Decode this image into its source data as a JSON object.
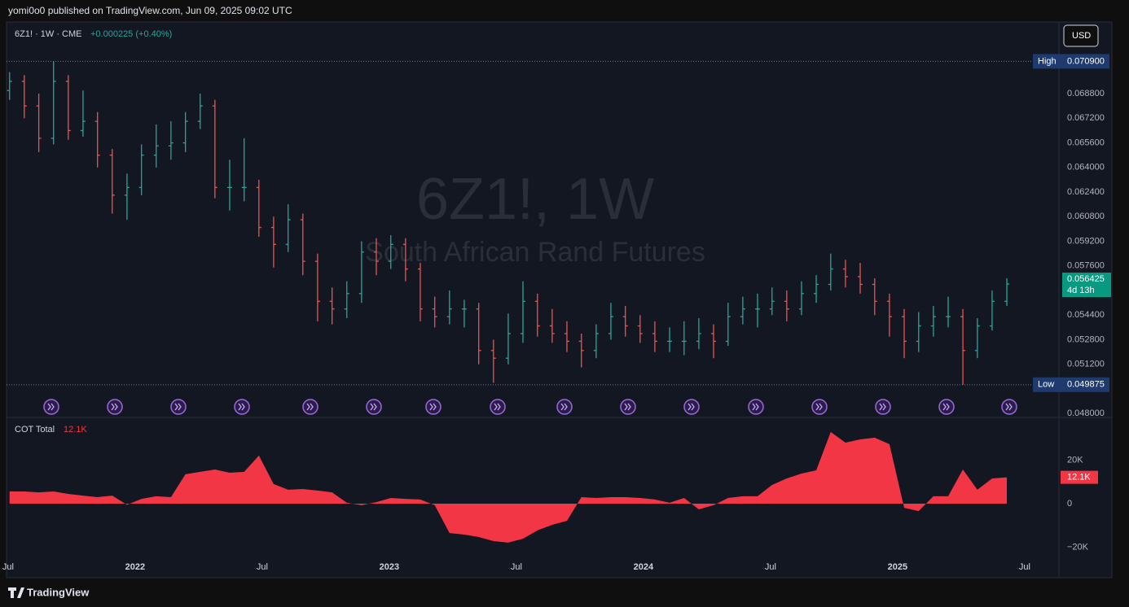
{
  "header": {
    "published": "yomi0o0 published on TradingView.com, Jun 09, 2025 09:02 UTC",
    "symbol": "6Z1! · 1W · CME",
    "change": "+0.000225 (+0.40%)",
    "currency": "USD",
    "watermark": "6Z1!, 1W",
    "description": "South African Rand Futures",
    "brand": "TradingView"
  },
  "chart_data": [
    {
      "type": "ohlc",
      "xlim": [
        2021.494,
        2025.635
      ],
      "xticks": [
        {
          "value": 2021.5,
          "label": "Jul"
        },
        2022,
        {
          "value": 2022.5,
          "label": "Jul"
        },
        2023,
        {
          "value": 2023.5,
          "label": "Jul"
        },
        2024,
        {
          "value": 2024.5,
          "label": "Jul"
        },
        2025,
        {
          "value": 2025.5,
          "label": "Jul"
        }
      ],
      "ylim": [
        0.04775,
        0.07346
      ],
      "yticks": [
        {
          "value": 0.048,
          "label": "0.048000"
        },
        {
          "value": 0.0512,
          "label": "0.051200"
        },
        {
          "value": 0.0528,
          "label": "0.052800"
        },
        {
          "value": 0.0544,
          "label": "0.054400"
        },
        {
          "value": 0.0576,
          "label": "0.057600"
        },
        {
          "value": 0.0592,
          "label": "0.059200"
        },
        {
          "value": 0.0608,
          "label": "0.060800"
        },
        {
          "value": 0.0624,
          "label": "0.062400"
        },
        {
          "value": 0.064,
          "label": "0.064000"
        },
        {
          "value": 0.0656,
          "label": "0.065600"
        },
        {
          "value": 0.0672,
          "label": "0.067200"
        },
        {
          "value": 0.0688,
          "label": "0.068800"
        }
      ],
      "up_color": "#26a69a",
      "down_color": "#ef5350",
      "x": [
        2021.506,
        2021.564,
        2021.621,
        2021.679,
        2021.737,
        2021.795,
        2021.852,
        2021.91,
        2021.968,
        2022.025,
        2022.083,
        2022.141,
        2022.198,
        2022.256,
        2022.314,
        2022.372,
        2022.429,
        2022.487,
        2022.545,
        2022.602,
        2022.66,
        2022.718,
        2022.775,
        2022.833,
        2022.891,
        2022.949,
        2023.006,
        2023.064,
        2023.122,
        2023.179,
        2023.237,
        2023.295,
        2023.352,
        2023.41,
        2023.468,
        2023.526,
        2023.583,
        2023.641,
        2023.699,
        2023.756,
        2023.814,
        2023.872,
        2023.929,
        2023.987,
        2024.045,
        2024.103,
        2024.16,
        2024.218,
        2024.276,
        2024.333,
        2024.391,
        2024.449,
        2024.506,
        2024.564,
        2024.622,
        2024.68,
        2024.737,
        2024.795,
        2024.853,
        2024.91,
        2024.968,
        2025.026,
        2025.083,
        2025.141,
        2025.199,
        2025.257,
        2025.314,
        2025.372,
        2025.43
      ],
      "ohlc": [
        [
          0.069,
          0.0702,
          0.0684,
          0.0696
        ],
        [
          0.0696,
          0.07,
          0.0672,
          0.068
        ],
        [
          0.068,
          0.0688,
          0.065,
          0.0659
        ],
        [
          0.0659,
          0.0709,
          0.0655,
          0.0696
        ],
        [
          0.0696,
          0.07,
          0.0658,
          0.0664
        ],
        [
          0.0664,
          0.069,
          0.066,
          0.067
        ],
        [
          0.067,
          0.0676,
          0.064,
          0.0648
        ],
        [
          0.0648,
          0.0652,
          0.061,
          0.0622
        ],
        [
          0.0622,
          0.0636,
          0.0606,
          0.0627
        ],
        [
          0.0627,
          0.0655,
          0.0622,
          0.0648
        ],
        [
          0.0648,
          0.0668,
          0.064,
          0.0654
        ],
        [
          0.0654,
          0.067,
          0.0645,
          0.0656
        ],
        [
          0.0656,
          0.0676,
          0.065,
          0.067
        ],
        [
          0.067,
          0.0688,
          0.0665,
          0.068
        ],
        [
          0.068,
          0.0684,
          0.062,
          0.0627
        ],
        [
          0.0627,
          0.0645,
          0.0612,
          0.0627
        ],
        [
          0.0627,
          0.0659,
          0.0618,
          0.0627
        ],
        [
          0.0627,
          0.0632,
          0.0595,
          0.0601
        ],
        [
          0.0601,
          0.0608,
          0.0575,
          0.059
        ],
        [
          0.059,
          0.0616,
          0.0585,
          0.0606
        ],
        [
          0.0606,
          0.061,
          0.057,
          0.0579
        ],
        [
          0.0579,
          0.0584,
          0.054,
          0.0553
        ],
        [
          0.0553,
          0.0562,
          0.0538,
          0.0548
        ],
        [
          0.0548,
          0.0566,
          0.0542,
          0.0558
        ],
        [
          0.0558,
          0.0592,
          0.0552,
          0.0585
        ],
        [
          0.0585,
          0.0594,
          0.057,
          0.0579
        ],
        [
          0.0579,
          0.0596,
          0.0574,
          0.059
        ],
        [
          0.059,
          0.0594,
          0.0566,
          0.0574
        ],
        [
          0.0574,
          0.0578,
          0.054,
          0.0548
        ],
        [
          0.0548,
          0.0556,
          0.0536,
          0.0543
        ],
        [
          0.0543,
          0.056,
          0.0538,
          0.0548
        ],
        [
          0.0548,
          0.0554,
          0.0536,
          0.0548
        ],
        [
          0.0548,
          0.0552,
          0.0512,
          0.0521
        ],
        [
          0.0521,
          0.0528,
          0.05,
          0.0516
        ],
        [
          0.0516,
          0.0545,
          0.0512,
          0.0532
        ],
        [
          0.0532,
          0.0566,
          0.0526,
          0.0553
        ],
        [
          0.0553,
          0.0558,
          0.053,
          0.0537
        ],
        [
          0.0537,
          0.0548,
          0.0526,
          0.0532
        ],
        [
          0.0532,
          0.054,
          0.052,
          0.0527
        ],
        [
          0.0527,
          0.0532,
          0.051,
          0.0521
        ],
        [
          0.0521,
          0.0538,
          0.0516,
          0.0532
        ],
        [
          0.0532,
          0.0552,
          0.0528,
          0.0543
        ],
        [
          0.0543,
          0.055,
          0.053,
          0.0537
        ],
        [
          0.0537,
          0.0544,
          0.0526,
          0.0532
        ],
        [
          0.0532,
          0.054,
          0.052,
          0.0527
        ],
        [
          0.0527,
          0.0536,
          0.052,
          0.0527
        ],
        [
          0.0527,
          0.054,
          0.0518,
          0.0527
        ],
        [
          0.0527,
          0.0542,
          0.0522,
          0.0532
        ],
        [
          0.0532,
          0.0538,
          0.0516,
          0.0527
        ],
        [
          0.0527,
          0.0552,
          0.0524,
          0.0543
        ],
        [
          0.0543,
          0.0556,
          0.0538,
          0.0548
        ],
        [
          0.0548,
          0.0558,
          0.0536,
          0.0548
        ],
        [
          0.0548,
          0.0562,
          0.0544,
          0.0553
        ],
        [
          0.0553,
          0.056,
          0.054,
          0.0548
        ],
        [
          0.0548,
          0.0566,
          0.0544,
          0.0558
        ],
        [
          0.0558,
          0.057,
          0.0552,
          0.0564
        ],
        [
          0.0564,
          0.0584,
          0.056,
          0.0574
        ],
        [
          0.0574,
          0.058,
          0.0562,
          0.0569
        ],
        [
          0.0569,
          0.0578,
          0.0558,
          0.0564
        ],
        [
          0.0564,
          0.0568,
          0.0544,
          0.0553
        ],
        [
          0.0553,
          0.0558,
          0.053,
          0.0543
        ],
        [
          0.0543,
          0.0548,
          0.0516,
          0.0527
        ],
        [
          0.0527,
          0.0546,
          0.052,
          0.0537
        ],
        [
          0.0537,
          0.055,
          0.053,
          0.0543
        ],
        [
          0.0543,
          0.0556,
          0.0536,
          0.0543
        ],
        [
          0.0543,
          0.0548,
          0.049875,
          0.0521
        ],
        [
          0.0521,
          0.0542,
          0.0516,
          0.0537
        ],
        [
          0.0537,
          0.056,
          0.0534,
          0.0553
        ],
        [
          0.0553,
          0.0568,
          0.055,
          0.056425
        ]
      ],
      "high": {
        "name": "High",
        "value": 0.0709,
        "label": "0.070900"
      },
      "low": {
        "name": "Low",
        "value": 0.049875,
        "label": "0.049875"
      },
      "last": {
        "label": "0.056425",
        "countdown": "4d 13h",
        "color": "#089981"
      }
    },
    {
      "type": "area",
      "xlim": [
        2021.494,
        2025.635
      ],
      "ylim": [
        -34000,
        39600
      ],
      "yticks": [
        {
          "value": 20000,
          "label": "20K"
        },
        0,
        {
          "value": -20000,
          "label": "−20K"
        }
      ],
      "x": [
        2021.506,
        2021.564,
        2021.621,
        2021.679,
        2021.737,
        2021.795,
        2021.852,
        2021.91,
        2021.968,
        2022.025,
        2022.083,
        2022.141,
        2022.198,
        2022.256,
        2022.314,
        2022.372,
        2022.429,
        2022.487,
        2022.545,
        2022.602,
        2022.66,
        2022.718,
        2022.775,
        2022.833,
        2022.891,
        2022.949,
        2023.006,
        2023.064,
        2023.122,
        2023.179,
        2023.237,
        2023.295,
        2023.352,
        2023.41,
        2023.468,
        2023.526,
        2023.583,
        2023.641,
        2023.699,
        2023.756,
        2023.814,
        2023.872,
        2023.929,
        2023.987,
        2024.045,
        2024.103,
        2024.16,
        2024.218,
        2024.276,
        2024.333,
        2024.391,
        2024.449,
        2024.506,
        2024.564,
        2024.622,
        2024.68,
        2024.737,
        2024.795,
        2024.853,
        2024.91,
        2024.968,
        2025.026,
        2025.083,
        2025.141,
        2025.199,
        2025.257,
        2025.314,
        2025.372,
        2025.43
      ],
      "series": [
        {
          "name": "COT Total",
          "color": "#f23645",
          "last_label": "12.1K",
          "values": [
            5600,
            5600,
            5200,
            5600,
            4500,
            3700,
            3000,
            3700,
            -500,
            2200,
            3400,
            3000,
            13500,
            14600,
            15700,
            14200,
            14600,
            22100,
            9000,
            6400,
            6700,
            6000,
            5200,
            400,
            -700,
            700,
            2600,
            2200,
            1900,
            -700,
            -13500,
            -14200,
            -15300,
            -17200,
            -17900,
            -16100,
            -12300,
            -9700,
            -7900,
            3000,
            2600,
            3000,
            3000,
            2600,
            1900,
            400,
            2600,
            -2600,
            -700,
            2600,
            3400,
            3400,
            8600,
            11600,
            13800,
            15300,
            32900,
            28000,
            29500,
            30300,
            27300,
            -1900,
            -3400,
            3400,
            3400,
            15700,
            6400,
            11600,
            12100
          ]
        }
      ]
    }
  ]
}
